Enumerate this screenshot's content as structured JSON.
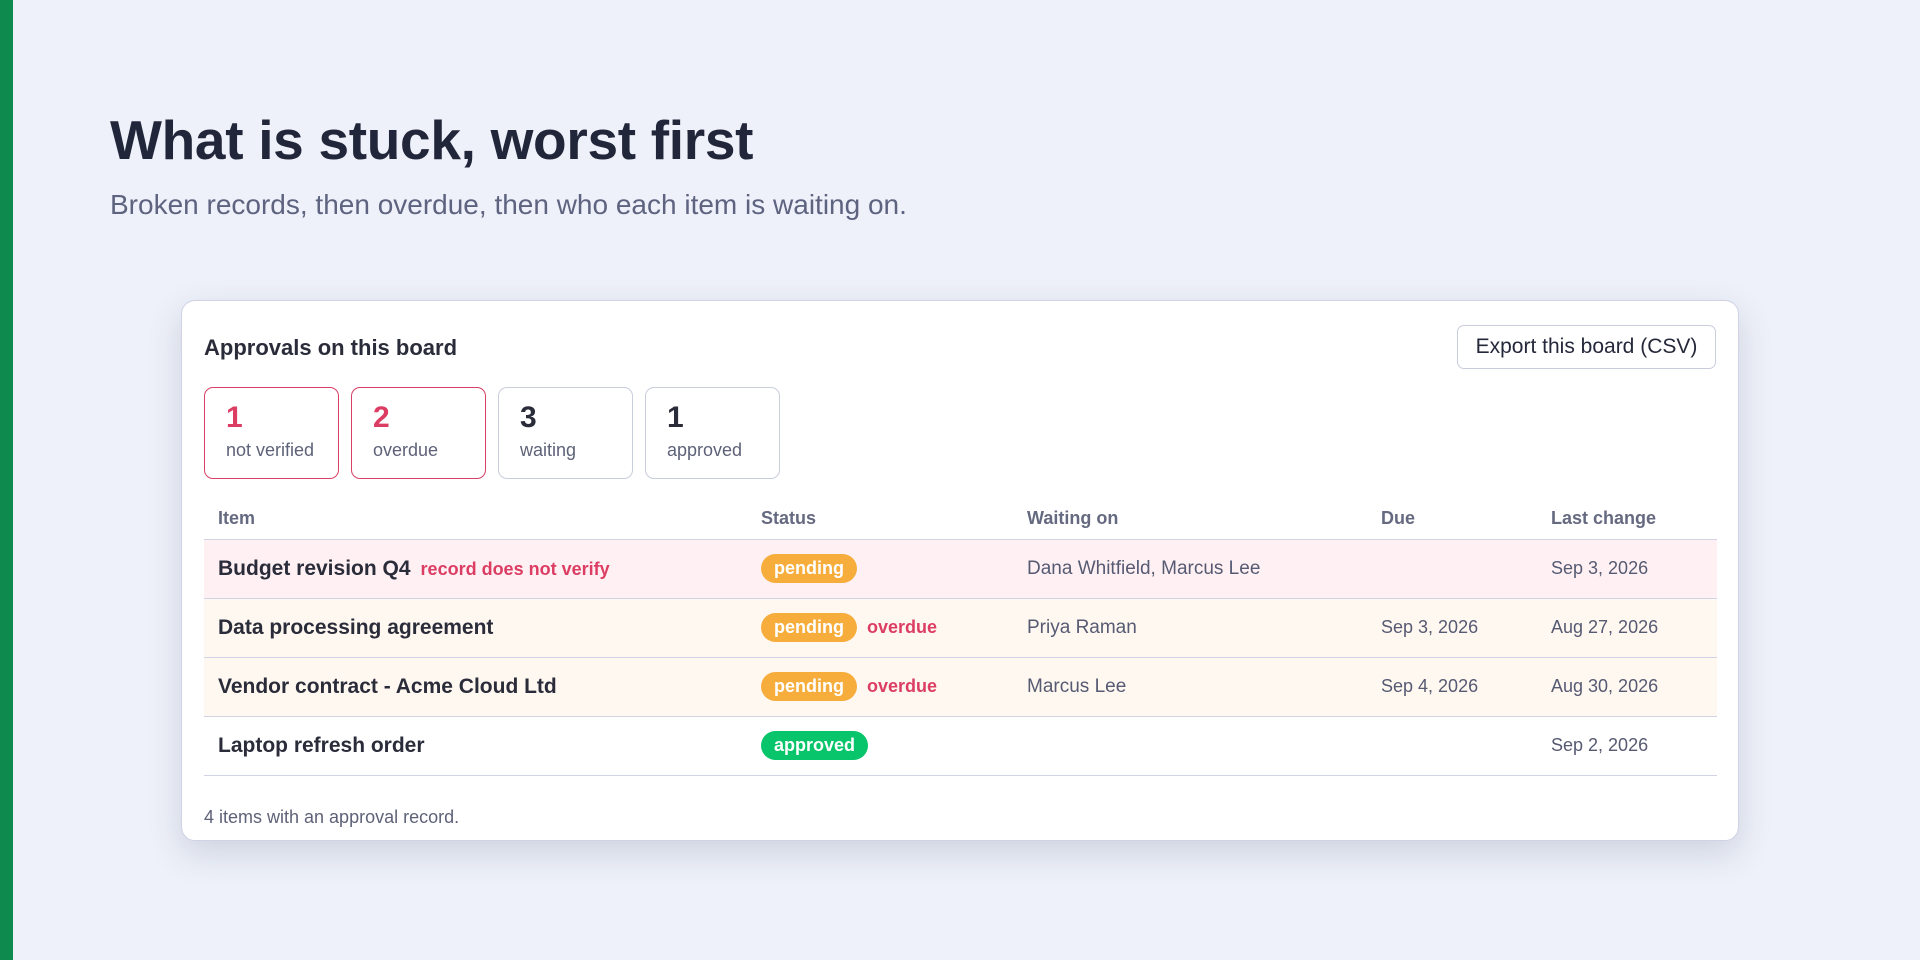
{
  "header": {
    "title": "What is stuck, worst first",
    "subtitle": "Broken records, then overdue, then who each item is waiting on."
  },
  "card": {
    "title": "Approvals on this board",
    "export_label": "Export this board (CSV)",
    "stats": [
      {
        "count": "1",
        "label": "not verified",
        "alert": true
      },
      {
        "count": "2",
        "label": "overdue",
        "alert": true
      },
      {
        "count": "3",
        "label": "waiting",
        "alert": false
      },
      {
        "count": "1",
        "label": "approved",
        "alert": false
      }
    ],
    "columns": [
      "Item",
      "Status",
      "Waiting on",
      "Due",
      "Last change"
    ],
    "rows": [
      {
        "item": "Budget revision Q4",
        "flag": "record does not verify",
        "status": "pending",
        "status_flag": "",
        "waiting_on": "Dana Whitfield, Marcus Lee",
        "due": "",
        "last_change": "Sep 3, 2026",
        "row_state": "broken"
      },
      {
        "item": "Data processing agreement",
        "flag": "",
        "status": "pending",
        "status_flag": "overdue",
        "waiting_on": "Priya Raman",
        "due": "Sep 3, 2026",
        "last_change": "Aug 27, 2026",
        "row_state": "overdue"
      },
      {
        "item": "Vendor contract - Acme Cloud Ltd",
        "flag": "",
        "status": "pending",
        "status_flag": "overdue",
        "waiting_on": "Marcus Lee",
        "due": "Sep 4, 2026",
        "last_change": "Aug 30, 2026",
        "row_state": "overdue"
      },
      {
        "item": "Laptop refresh order",
        "flag": "",
        "status": "approved",
        "status_flag": "",
        "waiting_on": "",
        "due": "",
        "last_change": "Sep 2, 2026",
        "row_state": "normal"
      }
    ],
    "footer": "4 items with an approval record."
  },
  "colors": {
    "accent_bar": "#0e8a4f",
    "alert_red": "#dc3d63",
    "pending_orange": "#f7ad3c",
    "approved_green": "#08c46a"
  }
}
